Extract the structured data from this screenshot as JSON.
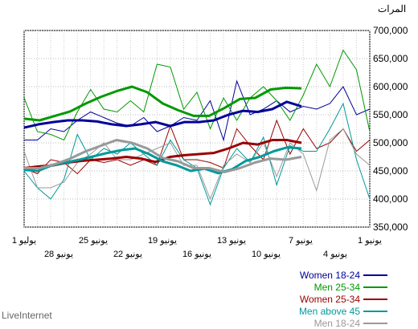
{
  "chart_data": {
    "type": "line",
    "ylabel": "المرات",
    "ylim": [
      350000,
      700000
    ],
    "yticks": [
      350000,
      400000,
      450000,
      500000,
      550000,
      600000,
      650000,
      700000
    ],
    "ytick_labels": [
      "350,000",
      "400,000",
      "450,000",
      "500,000",
      "550,000",
      "600,000",
      "650,000",
      "700,000"
    ],
    "x_ticks_upper": [
      "1 يوليو",
      "25 يونيو",
      "19 يونيو",
      "13 يونيو",
      "7 يونيو",
      "1 يونيو"
    ],
    "x_ticks_lower": [
      "28 يونيو",
      "22 يونيو",
      "16 يونيو",
      "10 يونيو",
      "4 يونيو"
    ],
    "grid": true,
    "legend_position": "bottom-right",
    "series": [
      {
        "name": "Women 18-24",
        "color": "#000099",
        "values": [
          505000,
          505000,
          525000,
          520000,
          540000,
          555000,
          545000,
          535000,
          530000,
          545000,
          520000,
          530000,
          545000,
          540000,
          575000,
          505000,
          610000,
          550000,
          560000,
          575000,
          555000,
          565000,
          560000,
          570000,
          600000,
          550000,
          560000
        ],
        "trend": [
          527000,
          533000,
          537000,
          540000,
          540000,
          538000,
          533000,
          530000,
          533000,
          537000,
          530000,
          537000,
          537000,
          540000,
          550000,
          557000,
          555000,
          560000,
          573000,
          565000
        ]
      },
      {
        "name": "Men 25-34",
        "color": "#009900",
        "values": [
          580000,
          520000,
          515000,
          505000,
          555000,
          595000,
          560000,
          555000,
          575000,
          555000,
          640000,
          635000,
          560000,
          590000,
          525000,
          580000,
          540000,
          580000,
          600000,
          575000,
          540000,
          585000,
          640000,
          600000,
          665000,
          630000,
          520000
        ],
        "trend": [
          543000,
          540000,
          548000,
          556000,
          570000,
          582000,
          592000,
          600000,
          590000,
          570000,
          558000,
          548000,
          548000,
          562000,
          578000,
          580000,
          595000,
          598000,
          597000
        ]
      },
      {
        "name": "Women 25-34",
        "color": "#990000",
        "values": [
          455000,
          445000,
          470000,
          465000,
          445000,
          470000,
          465000,
          470000,
          460000,
          470000,
          460000,
          530000,
          470000,
          470000,
          465000,
          455000,
          525000,
          495000,
          470000,
          540000,
          480000,
          525000,
          490000,
          500000,
          525000,
          485000,
          505000
        ],
        "trend": [
          455000,
          458000,
          460000,
          465000,
          468000,
          470000,
          472000,
          475000,
          472000,
          466000,
          475000,
          478000,
          480000,
          482000,
          490000,
          500000,
          497000,
          505000,
          505000,
          500000
        ]
      },
      {
        "name": "Men above 45",
        "color": "#009999",
        "values": [
          450000,
          420000,
          400000,
          435000,
          515000,
          470000,
          490000,
          480000,
          500000,
          480000,
          460000,
          505000,
          470000,
          455000,
          390000,
          455000,
          490000,
          465000,
          510000,
          425000,
          495000,
          485000,
          485000,
          525000,
          570000,
          470000,
          400000
        ],
        "trend": [
          452000,
          450000,
          460000,
          465000,
          470000,
          476000,
          482000,
          487000,
          490000,
          480000,
          467000,
          460000,
          450000,
          454000,
          446000,
          453000,
          468000,
          475000,
          485000,
          492000,
          490000
        ]
      },
      {
        "name": "Men 18-24",
        "color": "#999999",
        "values": [
          485000,
          420000,
          420000,
          430000,
          465000,
          480000,
          500000,
          470000,
          470000,
          480000,
          490000,
          500000,
          460000,
          460000,
          400000,
          460000,
          480000,
          465000,
          500000,
          440000,
          500000,
          480000,
          415000,
          505000,
          525000,
          480000,
          460000
        ],
        "trend": [
          455000,
          455000,
          462000,
          472000,
          485000,
          495000,
          505000,
          500000,
          490000,
          473000,
          467000,
          455000,
          455000,
          448000,
          455000,
          465000,
          472000,
          470000,
          475000
        ]
      }
    ]
  },
  "watermark": "LiveInternet"
}
